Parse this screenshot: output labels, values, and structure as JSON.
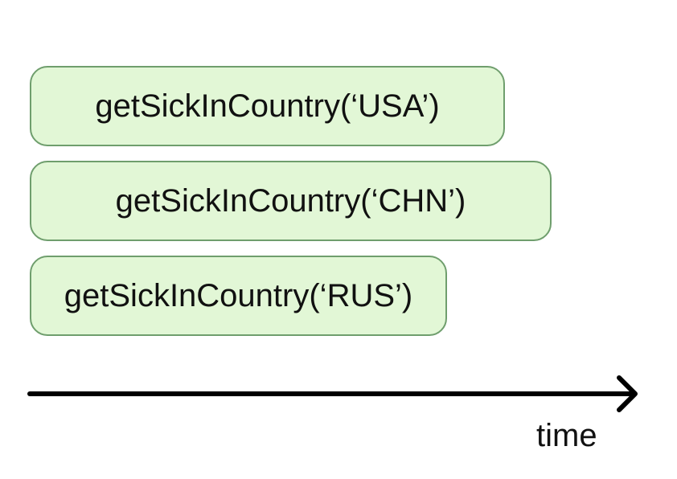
{
  "calls": [
    {
      "label": "getSickInCountry(‘USA’)"
    },
    {
      "label": "getSickInCountry(‘CHN’)"
    },
    {
      "label": "getSickInCountry(‘RUS’)"
    }
  ],
  "axis": {
    "label": "time"
  },
  "colors": {
    "box_fill": "#e2f7d6",
    "box_border": "#6f9e6d",
    "text": "#111111",
    "axis": "#000000"
  }
}
